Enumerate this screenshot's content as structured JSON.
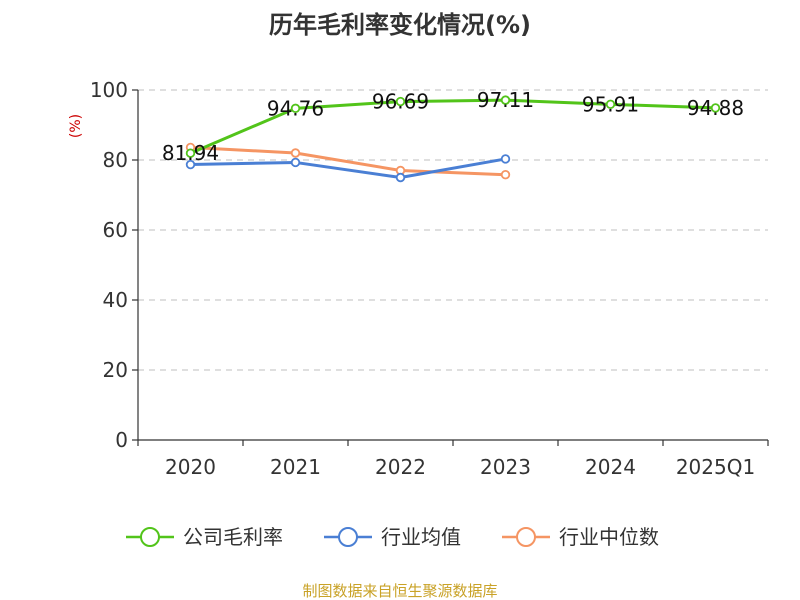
{
  "chart_data": {
    "type": "line",
    "title": "历年毛利率变化情况(%)",
    "xlabel": "",
    "ylabel": "(%)",
    "categories": [
      "2020",
      "2021",
      "2022",
      "2023",
      "2024",
      "2025Q1"
    ],
    "ylim": [
      0,
      100
    ],
    "yticks": [
      0,
      20,
      40,
      60,
      80,
      100
    ],
    "grid": true,
    "legend_position": "bottom",
    "series": [
      {
        "name": "公司毛利率",
        "color": "#52c41a",
        "values": [
          81.94,
          94.76,
          96.69,
          97.11,
          95.91,
          94.88
        ],
        "labels": [
          "81.94",
          "94.76",
          "96.69",
          "97.11",
          "95.91",
          "94.88"
        ]
      },
      {
        "name": "行业均值",
        "color": "#4a7fd4",
        "values": [
          78.7,
          79.3,
          75.0,
          80.3,
          null,
          null
        ],
        "labels": []
      },
      {
        "name": "行业中位数",
        "color": "#f59563",
        "values": [
          83.6,
          82.0,
          77.0,
          75.8,
          null,
          null
        ],
        "labels": []
      }
    ]
  },
  "footer": {
    "source": "制图数据来自恒生聚源数据库"
  }
}
